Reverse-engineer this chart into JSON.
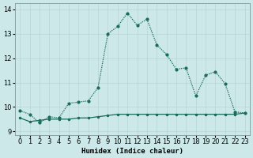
{
  "title": "",
  "xlabel": "Humidex (Indice chaleur)",
  "ylabel": "",
  "bg_color": "#cce8e8",
  "grid_color": "#b8d4d4",
  "line_color": "#1a6b5a",
  "xlim": [
    -0.5,
    23.5
  ],
  "ylim": [
    8.85,
    14.25
  ],
  "yticks": [
    9,
    10,
    11,
    12,
    13,
    14
  ],
  "xticks": [
    0,
    1,
    2,
    3,
    4,
    5,
    6,
    7,
    8,
    9,
    10,
    11,
    12,
    13,
    14,
    15,
    16,
    17,
    18,
    19,
    20,
    21,
    22,
    23
  ],
  "curve1_x": [
    0,
    1,
    2,
    3,
    4,
    5,
    6,
    7,
    8,
    9,
    10,
    11,
    12,
    13,
    14,
    15,
    16,
    17,
    18,
    19,
    20,
    21,
    22,
    23
  ],
  "curve1_y": [
    9.85,
    9.7,
    9.35,
    9.6,
    9.55,
    10.15,
    10.2,
    10.25,
    10.8,
    13.0,
    13.3,
    13.85,
    13.35,
    13.6,
    12.55,
    12.15,
    11.55,
    11.6,
    10.45,
    11.3,
    11.45,
    10.95,
    9.8,
    9.75
  ],
  "curve2_x": [
    0,
    1,
    2,
    3,
    4,
    5,
    6,
    7,
    8,
    9,
    10,
    11,
    12,
    13,
    14,
    15,
    16,
    17,
    18,
    19,
    20,
    21,
    22,
    23
  ],
  "curve2_y": [
    9.55,
    9.4,
    9.45,
    9.5,
    9.5,
    9.5,
    9.55,
    9.55,
    9.6,
    9.65,
    9.7,
    9.7,
    9.7,
    9.7,
    9.7,
    9.7,
    9.7,
    9.7,
    9.7,
    9.7,
    9.7,
    9.7,
    9.7,
    9.75
  ],
  "marker_size": 3,
  "linewidth": 0.9,
  "tick_fontsize": 6
}
